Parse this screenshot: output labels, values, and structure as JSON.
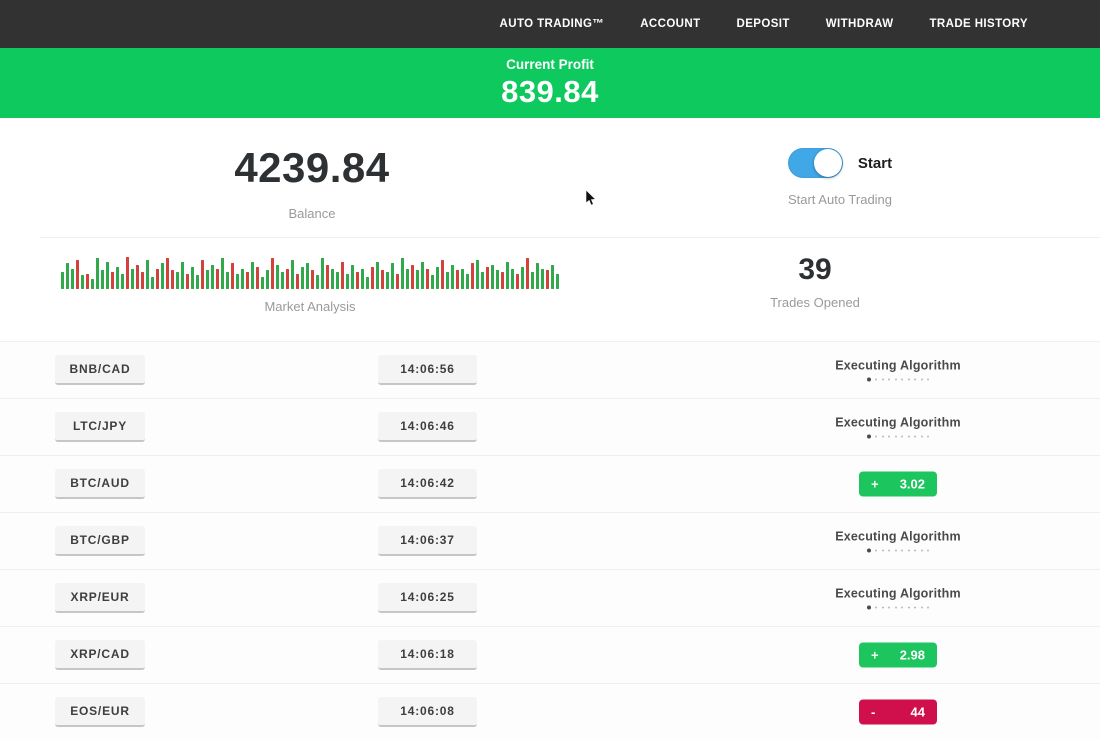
{
  "nav": {
    "items": [
      {
        "label": "AUTO TRADING™"
      },
      {
        "label": "ACCOUNT"
      },
      {
        "label": "DEPOSIT"
      },
      {
        "label": "WITHDRAW"
      },
      {
        "label": "TRADE HISTORY"
      }
    ]
  },
  "banner": {
    "label": "Current Profit",
    "value": "839.84",
    "background_color": "#0dc95e"
  },
  "stats": {
    "balance_value": "4239.84",
    "balance_label": "Balance",
    "toggle_label": "Start",
    "toggle_state": "on",
    "toggle_color": "#41a8e8",
    "toggle_sublabel": "Start Auto Trading",
    "trades_opened_value": "39",
    "trades_opened_label": "Trades Opened",
    "market_label": "Market Analysis"
  },
  "chart_data": {
    "type": "bar",
    "title": "Market Analysis",
    "description": "decorative market pulse strip of green/red bars, bottom-aligned, heights relative 0-1",
    "colors": {
      "g": "#2fa94c",
      "r": "#d2423c"
    },
    "bars": [
      [
        0.5,
        "g"
      ],
      [
        0.75,
        "g"
      ],
      [
        0.6,
        "g"
      ],
      [
        0.85,
        "r"
      ],
      [
        0.4,
        "g"
      ],
      [
        0.45,
        "r"
      ],
      [
        0.3,
        "g"
      ],
      [
        0.9,
        "g"
      ],
      [
        0.55,
        "g"
      ],
      [
        0.8,
        "g"
      ],
      [
        0.5,
        "r"
      ],
      [
        0.65,
        "g"
      ],
      [
        0.45,
        "g"
      ],
      [
        0.95,
        "r"
      ],
      [
        0.6,
        "g"
      ],
      [
        0.7,
        "r"
      ],
      [
        0.5,
        "r"
      ],
      [
        0.85,
        "g"
      ],
      [
        0.35,
        "g"
      ],
      [
        0.6,
        "r"
      ],
      [
        0.75,
        "g"
      ],
      [
        0.9,
        "r"
      ],
      [
        0.55,
        "r"
      ],
      [
        0.5,
        "g"
      ],
      [
        0.8,
        "g"
      ],
      [
        0.45,
        "r"
      ],
      [
        0.65,
        "g"
      ],
      [
        0.4,
        "g"
      ],
      [
        0.85,
        "r"
      ],
      [
        0.55,
        "g"
      ],
      [
        0.7,
        "g"
      ],
      [
        0.6,
        "r"
      ],
      [
        0.9,
        "g"
      ],
      [
        0.5,
        "g"
      ],
      [
        0.75,
        "r"
      ],
      [
        0.45,
        "g"
      ],
      [
        0.6,
        "g"
      ],
      [
        0.5,
        "r"
      ],
      [
        0.8,
        "g"
      ],
      [
        0.65,
        "r"
      ],
      [
        0.35,
        "g"
      ],
      [
        0.55,
        "g"
      ],
      [
        0.9,
        "r"
      ],
      [
        0.7,
        "g"
      ],
      [
        0.5,
        "g"
      ],
      [
        0.6,
        "r"
      ],
      [
        0.85,
        "g"
      ],
      [
        0.45,
        "r"
      ],
      [
        0.65,
        "g"
      ],
      [
        0.75,
        "g"
      ],
      [
        0.55,
        "r"
      ],
      [
        0.4,
        "g"
      ],
      [
        0.9,
        "g"
      ],
      [
        0.7,
        "r"
      ],
      [
        0.6,
        "g"
      ],
      [
        0.5,
        "g"
      ],
      [
        0.8,
        "r"
      ],
      [
        0.45,
        "g"
      ],
      [
        0.7,
        "g"
      ],
      [
        0.5,
        "r"
      ],
      [
        0.6,
        "g"
      ],
      [
        0.35,
        "g"
      ],
      [
        0.65,
        "r"
      ],
      [
        0.8,
        "g"
      ],
      [
        0.55,
        "r"
      ],
      [
        0.5,
        "g"
      ],
      [
        0.75,
        "g"
      ],
      [
        0.45,
        "r"
      ],
      [
        0.9,
        "g"
      ],
      [
        0.6,
        "g"
      ],
      [
        0.7,
        "r"
      ],
      [
        0.55,
        "g"
      ],
      [
        0.8,
        "g"
      ],
      [
        0.6,
        "r"
      ],
      [
        0.4,
        "g"
      ],
      [
        0.65,
        "g"
      ],
      [
        0.85,
        "r"
      ],
      [
        0.5,
        "g"
      ],
      [
        0.7,
        "g"
      ],
      [
        0.55,
        "r"
      ],
      [
        0.6,
        "g"
      ],
      [
        0.45,
        "g"
      ],
      [
        0.75,
        "r"
      ],
      [
        0.85,
        "g"
      ],
      [
        0.5,
        "g"
      ],
      [
        0.65,
        "r"
      ],
      [
        0.7,
        "g"
      ],
      [
        0.55,
        "g"
      ],
      [
        0.5,
        "r"
      ],
      [
        0.8,
        "g"
      ],
      [
        0.6,
        "g"
      ],
      [
        0.45,
        "r"
      ],
      [
        0.65,
        "g"
      ],
      [
        0.9,
        "r"
      ],
      [
        0.5,
        "g"
      ],
      [
        0.75,
        "g"
      ],
      [
        0.6,
        "g"
      ],
      [
        0.55,
        "r"
      ],
      [
        0.7,
        "g"
      ],
      [
        0.45,
        "g"
      ]
    ]
  },
  "trade_list": {
    "executing_label": "Executing Algorithm",
    "executing_dots_total": 10,
    "profit_color": "#1dc55e",
    "loss_color": "#d0104c",
    "trades": [
      {
        "pair": "BNB/CAD",
        "time": "14:06:56",
        "status": "executing"
      },
      {
        "pair": "LTC/JPY",
        "time": "14:06:46",
        "status": "executing"
      },
      {
        "pair": "BTC/AUD",
        "time": "14:06:42",
        "status": "profit",
        "sign": "+",
        "value": "3.02"
      },
      {
        "pair": "BTC/GBP",
        "time": "14:06:37",
        "status": "executing"
      },
      {
        "pair": "XRP/EUR",
        "time": "14:06:25",
        "status": "executing"
      },
      {
        "pair": "XRP/CAD",
        "time": "14:06:18",
        "status": "profit",
        "sign": "+",
        "value": "2.98"
      },
      {
        "pair": "EOS/EUR",
        "time": "14:06:08",
        "status": "loss",
        "sign": "-",
        "value": "44"
      }
    ]
  }
}
